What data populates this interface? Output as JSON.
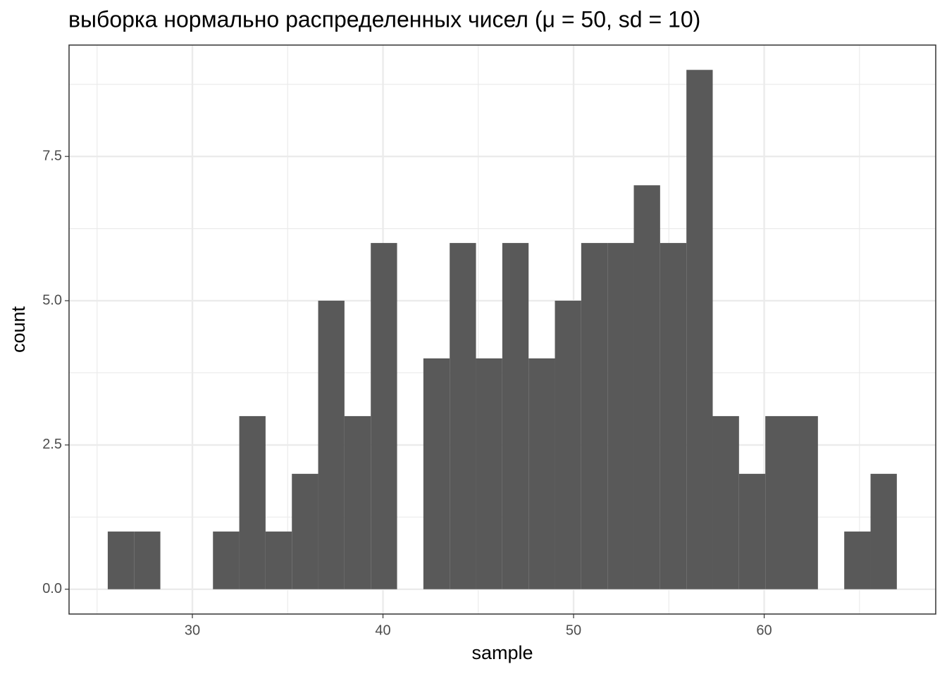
{
  "chart_data": {
    "type": "histogram",
    "title": "выборка нормально распределенных чисел (μ = 50, sd = 10)",
    "x_label": "sample",
    "y_label": "count",
    "bins": [
      25.56,
      26.94,
      28.32,
      29.7,
      31.08,
      32.46,
      33.84,
      35.22,
      36.6,
      37.98,
      39.36,
      40.74,
      42.12,
      43.5,
      44.88,
      46.26,
      47.64,
      49.02,
      50.4,
      51.78,
      53.16,
      54.54,
      55.92,
      57.3,
      58.68,
      60.06,
      61.44,
      62.82,
      64.2,
      65.58,
      66.96
    ],
    "values": [
      1,
      1,
      0,
      0,
      1,
      3,
      1,
      2,
      5,
      3,
      6,
      0,
      4,
      6,
      4,
      6,
      4,
      5,
      6,
      6,
      7,
      6,
      9,
      3,
      2,
      3,
      3,
      0,
      1,
      2
    ],
    "color": "#595959",
    "xlim": [
      23.53,
      69.0
    ],
    "ylim": [
      -0.43,
      9.43
    ],
    "xticks": [
      30,
      40,
      50,
      60
    ],
    "yticks": [
      {
        "value": 0,
        "label": "0.0"
      },
      {
        "value": 2.5,
        "label": "2.5"
      },
      {
        "value": 5,
        "label": "5.0"
      },
      {
        "value": 7.5,
        "label": "7.5"
      }
    ],
    "grid": true
  }
}
